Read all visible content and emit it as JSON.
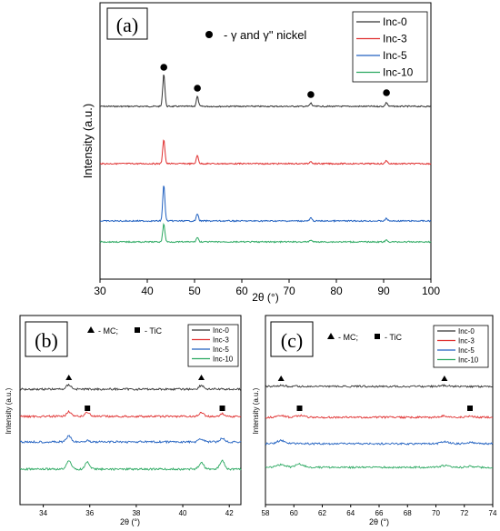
{
  "chart_data": [
    {
      "panel": "(a)",
      "type": "line",
      "xlabel": "2θ (°)",
      "ylabel": "Intensity (a.u.)",
      "xlim": [
        30,
        100
      ],
      "xticks": [
        "30",
        "40",
        "50",
        "60",
        "70",
        "80",
        "90",
        "100"
      ],
      "annotation": "- γ and γ\" nickel",
      "legend_position": "top-right",
      "series": [
        {
          "name": "Inc-0",
          "color": "#333333"
        },
        {
          "name": "Inc-3",
          "color": "#e03030"
        },
        {
          "name": "Inc-5",
          "color": "#2060c0"
        },
        {
          "name": "Inc-10",
          "color": "#2aa860"
        }
      ],
      "peaks_2theta": [
        43.5,
        50.6,
        74.6,
        90.6
      ],
      "peak_marker": "●",
      "marker_peaks": [
        43.5,
        50.6,
        74.6,
        90.6
      ],
      "peak_heights": [
        [
          1.0,
          0.3,
          0.1,
          0.12
        ],
        [
          0.75,
          0.25,
          0.08,
          0.1
        ],
        [
          1.1,
          0.22,
          0.09,
          0.08
        ],
        [
          0.55,
          0.14,
          0.06,
          0.05
        ]
      ]
    },
    {
      "panel": "(b)",
      "type": "line",
      "xlabel": "2θ (°)",
      "ylabel": "Intensity (a.u.)",
      "xlim": [
        33,
        42.5
      ],
      "xticks": [
        "34",
        "36",
        "38",
        "40",
        "42"
      ],
      "annotation_mc": "- MC;",
      "annotation_tic": "- TiC",
      "legend_position": "top-right",
      "series": [
        {
          "name": "Inc-0",
          "color": "#333333"
        },
        {
          "name": "Inc-3",
          "color": "#e03030"
        },
        {
          "name": "Inc-5",
          "color": "#2060c0"
        },
        {
          "name": "Inc-10",
          "color": "#2aa860"
        }
      ],
      "mc_peaks": [
        35.1,
        40.8
      ],
      "tic_peaks": [
        35.9,
        41.7
      ]
    },
    {
      "panel": "(c)",
      "type": "line",
      "xlabel": "2θ (°)",
      "ylabel": "Intensity (a.u.)",
      "xlim": [
        58,
        74
      ],
      "xticks": [
        "58",
        "60",
        "62",
        "64",
        "66",
        "68",
        "70",
        "72",
        "74"
      ],
      "annotation_mc": "- MC;",
      "annotation_tic": "- TiC",
      "legend_position": "top-right",
      "series": [
        {
          "name": "Inc-0",
          "color": "#333333"
        },
        {
          "name": "Inc-3",
          "color": "#e03030"
        },
        {
          "name": "Inc-5",
          "color": "#2060c0"
        },
        {
          "name": "Inc-10",
          "color": "#2aa860"
        }
      ],
      "mc_peaks": [
        59.1,
        70.6
      ],
      "tic_peaks": [
        60.4,
        72.4
      ]
    }
  ]
}
